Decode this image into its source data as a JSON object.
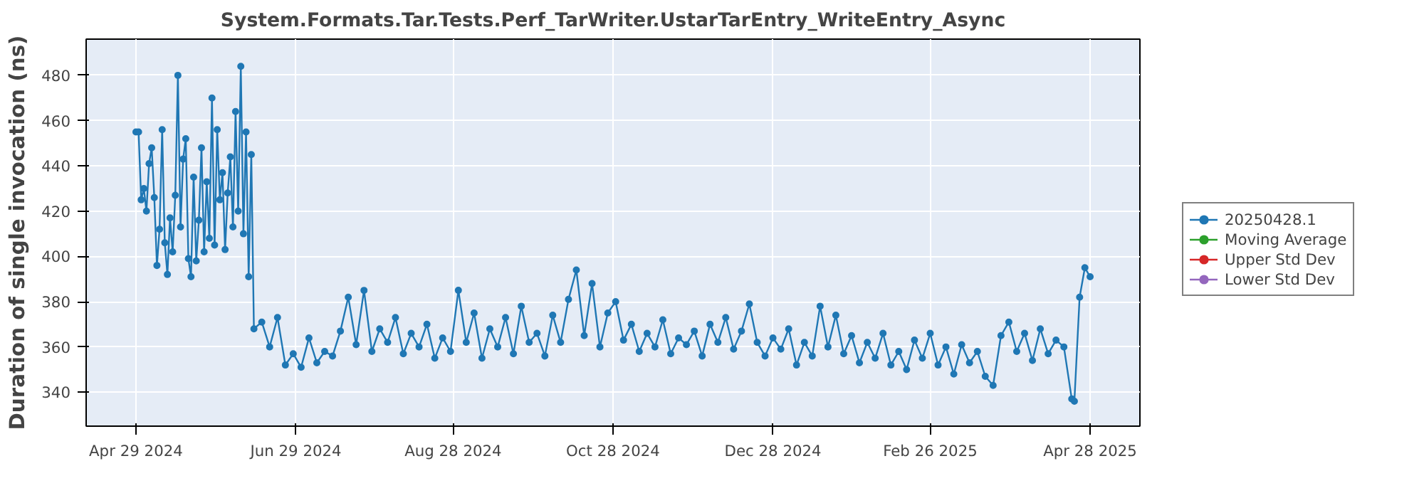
{
  "chart_data": {
    "type": "line",
    "title": "System.Formats.Tar.Tests.Perf_TarWriter.UstarTarEntry_WriteEntry_Async",
    "ylabel": "Duration of single invocation (ns)",
    "x": [
      "2024-04-29",
      "2024-04-30",
      "2024-05-01",
      "2024-05-02",
      "2024-05-03",
      "2024-05-04",
      "2024-05-05",
      "2024-05-06",
      "2024-05-07",
      "2024-05-08",
      "2024-05-09",
      "2024-05-10",
      "2024-05-11",
      "2024-05-12",
      "2024-05-13",
      "2024-05-14",
      "2024-05-15",
      "2024-05-16",
      "2024-05-17",
      "2024-05-18",
      "2024-05-19",
      "2024-05-20",
      "2024-05-21",
      "2024-05-22",
      "2024-05-23",
      "2024-05-24",
      "2024-05-25",
      "2024-05-26",
      "2024-05-27",
      "2024-05-28",
      "2024-05-29",
      "2024-05-30",
      "2024-05-31",
      "2024-06-01",
      "2024-06-02",
      "2024-06-03",
      "2024-06-04",
      "2024-06-05",
      "2024-06-06",
      "2024-06-07",
      "2024-06-08",
      "2024-06-09",
      "2024-06-10",
      "2024-06-11",
      "2024-06-12",
      "2024-06-13",
      "2024-06-16",
      "2024-06-19",
      "2024-06-22",
      "2024-06-25",
      "2024-06-28",
      "2024-07-01",
      "2024-07-04",
      "2024-07-07",
      "2024-07-10",
      "2024-07-13",
      "2024-07-16",
      "2024-07-19",
      "2024-07-22",
      "2024-07-25",
      "2024-07-28",
      "2024-07-31",
      "2024-08-03",
      "2024-08-06",
      "2024-08-09",
      "2024-08-12",
      "2024-08-15",
      "2024-08-18",
      "2024-08-21",
      "2024-08-24",
      "2024-08-27",
      "2024-08-30",
      "2024-09-02",
      "2024-09-05",
      "2024-09-08",
      "2024-09-11",
      "2024-09-14",
      "2024-09-17",
      "2024-09-20",
      "2024-09-23",
      "2024-09-26",
      "2024-09-29",
      "2024-10-02",
      "2024-10-05",
      "2024-10-08",
      "2024-10-11",
      "2024-10-14",
      "2024-10-17",
      "2024-10-20",
      "2024-10-23",
      "2024-10-26",
      "2024-10-29",
      "2024-11-01",
      "2024-11-04",
      "2024-11-07",
      "2024-11-10",
      "2024-11-13",
      "2024-11-16",
      "2024-11-19",
      "2024-11-22",
      "2024-11-25",
      "2024-11-28",
      "2024-12-01",
      "2024-12-04",
      "2024-12-07",
      "2024-12-10",
      "2024-12-13",
      "2024-12-16",
      "2024-12-19",
      "2024-12-22",
      "2024-12-25",
      "2024-12-28",
      "2024-12-31",
      "2025-01-03",
      "2025-01-06",
      "2025-01-09",
      "2025-01-12",
      "2025-01-15",
      "2025-01-18",
      "2025-01-21",
      "2025-01-24",
      "2025-01-27",
      "2025-01-30",
      "2025-02-02",
      "2025-02-05",
      "2025-02-08",
      "2025-02-11",
      "2025-02-14",
      "2025-02-17",
      "2025-02-20",
      "2025-02-23",
      "2025-02-26",
      "2025-03-01",
      "2025-03-04",
      "2025-03-07",
      "2025-03-10",
      "2025-03-13",
      "2025-03-16",
      "2025-03-19",
      "2025-03-22",
      "2025-03-25",
      "2025-03-28",
      "2025-03-31",
      "2025-04-03",
      "2025-04-06",
      "2025-04-09",
      "2025-04-12",
      "2025-04-15",
      "2025-04-18",
      "2025-04-21",
      "2025-04-22",
      "2025-04-24",
      "2025-04-26",
      "2025-04-28"
    ],
    "series": [
      {
        "name": "20250428.1",
        "color": "#1f77b4",
        "values": [
          455,
          455,
          425,
          430,
          420,
          441,
          448,
          426,
          396,
          412,
          456,
          406,
          392,
          417,
          402,
          427,
          480,
          413,
          443,
          452,
          399,
          391,
          435,
          398,
          416,
          448,
          402,
          433,
          408,
          470,
          405,
          456,
          425,
          437,
          403,
          428,
          444,
          413,
          464,
          420,
          484,
          410,
          455,
          391,
          445,
          368,
          371,
          360,
          373,
          352,
          357,
          351,
          364,
          353,
          358,
          356,
          367,
          382,
          361,
          385,
          358,
          368,
          362,
          373,
          357,
          366,
          360,
          370,
          355,
          364,
          358,
          385,
          362,
          375,
          355,
          368,
          360,
          373,
          357,
          378,
          362,
          366,
          356,
          374,
          362,
          381,
          394,
          365,
          388,
          360,
          375,
          380,
          363,
          370,
          358,
          366,
          360,
          372,
          357,
          364,
          361,
          367,
          356,
          370,
          362,
          373,
          359,
          367,
          379,
          362,
          356,
          364,
          359,
          368,
          352,
          362,
          356,
          378,
          360,
          374,
          357,
          365,
          353,
          362,
          355,
          366,
          352,
          358,
          350,
          363,
          355,
          366,
          352,
          360,
          348,
          361,
          353,
          358,
          347,
          343,
          365,
          371,
          358,
          366,
          354,
          368,
          357,
          363,
          360,
          337,
          336,
          382,
          395,
          391
        ]
      },
      {
        "name": "Moving Average",
        "color": "#2ca02c",
        "values": [
          null,
          null,
          null,
          null,
          null,
          null,
          null,
          null,
          null,
          null,
          null,
          null,
          null,
          null,
          null,
          null,
          null,
          null,
          null,
          null,
          null,
          null,
          null,
          null,
          null,
          null,
          null,
          null,
          null,
          null,
          null,
          null,
          null,
          null,
          null,
          null,
          null,
          null,
          null,
          null,
          null,
          null,
          null,
          null,
          null,
          null,
          null,
          null,
          null,
          null,
          null,
          null,
          null,
          null,
          null,
          null,
          null,
          null,
          null,
          null,
          null,
          null,
          null,
          null,
          null,
          null,
          null,
          null,
          null,
          null,
          null,
          null,
          null,
          null,
          null,
          null,
          null,
          null,
          null,
          null,
          null,
          null,
          null,
          null,
          null,
          null,
          null,
          null,
          null,
          null,
          null,
          null,
          null,
          null,
          null,
          null,
          null,
          null,
          null,
          null,
          null,
          null,
          null,
          null,
          null,
          null,
          null,
          null,
          null,
          null,
          null,
          null,
          null,
          null,
          null,
          null,
          null,
          null,
          null,
          null,
          null,
          null,
          null,
          null,
          null,
          null,
          null,
          null,
          null,
          null,
          null,
          null,
          null,
          null,
          null,
          null,
          null,
          null,
          null,
          null,
          null,
          null,
          null,
          null,
          null,
          null,
          null,
          null,
          null,
          null,
          null,
          null,
          null,
          null
        ]
      },
      {
        "name": "Upper Std Dev",
        "color": "#d62728",
        "values": [
          null,
          null,
          null,
          null,
          null,
          null,
          null,
          null,
          null,
          null,
          null,
          null,
          null,
          null,
          null,
          null,
          null,
          null,
          null,
          null,
          null,
          null,
          null,
          null,
          null,
          null,
          null,
          null,
          null,
          null,
          null,
          null,
          null,
          null,
          null,
          null,
          null,
          null,
          null,
          null,
          null,
          null,
          null,
          null,
          null,
          null,
          null,
          null,
          null,
          null,
          null,
          null,
          null,
          null,
          null,
          null,
          null,
          null,
          null,
          null,
          null,
          null,
          null,
          null,
          null,
          null,
          null,
          null,
          null,
          null,
          null,
          null,
          null,
          null,
          null,
          null,
          null,
          null,
          null,
          null,
          null,
          null,
          null,
          null,
          null,
          null,
          null,
          null,
          null,
          null,
          null,
          null,
          null,
          null,
          null,
          null,
          null,
          null,
          null,
          null,
          null,
          null,
          null,
          null,
          null,
          null,
          null,
          null,
          null,
          null,
          null,
          null,
          null,
          null,
          null,
          null,
          null,
          null,
          null,
          null,
          null,
          null,
          null,
          null,
          null,
          null,
          null,
          null,
          null,
          null,
          null,
          null,
          null,
          null,
          null,
          null,
          null,
          null,
          null,
          null,
          null,
          null,
          null,
          null,
          null,
          null,
          null,
          null,
          null,
          null,
          null,
          null,
          null,
          null
        ]
      },
      {
        "name": "Lower Std Dev",
        "color": "#9467bd",
        "values": [
          null,
          null,
          null,
          null,
          null,
          null,
          null,
          null,
          null,
          null,
          null,
          null,
          null,
          null,
          null,
          null,
          null,
          null,
          null,
          null,
          null,
          null,
          null,
          null,
          null,
          null,
          null,
          null,
          null,
          null,
          null,
          null,
          null,
          null,
          null,
          null,
          null,
          null,
          null,
          null,
          null,
          null,
          null,
          null,
          null,
          null,
          null,
          null,
          null,
          null,
          null,
          null,
          null,
          null,
          null,
          null,
          null,
          null,
          null,
          null,
          null,
          null,
          null,
          null,
          null,
          null,
          null,
          null,
          null,
          null,
          null,
          null,
          null,
          null,
          null,
          null,
          null,
          null,
          null,
          null,
          null,
          null,
          null,
          null,
          null,
          null,
          null,
          null,
          null,
          null,
          null,
          null,
          null,
          null,
          null,
          null,
          null,
          null,
          null,
          null,
          null,
          null,
          null,
          null,
          null,
          null,
          null,
          null,
          null,
          null,
          null,
          null,
          null,
          null,
          null,
          null,
          null,
          null,
          null,
          null,
          null,
          null,
          null,
          null,
          null,
          null,
          null,
          null,
          null,
          null,
          null,
          null,
          null,
          null,
          null,
          null,
          null,
          null,
          null,
          null,
          null,
          null,
          null,
          null,
          null,
          null,
          null,
          null,
          null,
          null,
          null,
          null,
          null,
          null
        ]
      }
    ],
    "xlim": [
      "2024-04-10",
      "2025-05-17"
    ],
    "xticks": [
      {
        "value": "2024-04-29",
        "label": "Apr 29 2024"
      },
      {
        "value": "2024-06-29",
        "label": "Jun 29 2024"
      },
      {
        "value": "2024-08-28",
        "label": "Aug 28 2024"
      },
      {
        "value": "2024-10-28",
        "label": "Oct 28 2024"
      },
      {
        "value": "2024-12-28",
        "label": "Dec 28 2024"
      },
      {
        "value": "2025-02-26",
        "label": "Feb 26 2025"
      },
      {
        "value": "2025-04-28",
        "label": "Apr 28 2025"
      }
    ],
    "ylim": [
      325,
      496
    ],
    "yticks": [
      340,
      360,
      380,
      400,
      420,
      440,
      460,
      480
    ],
    "grid": true,
    "legend": "right",
    "marker": "circle",
    "line_style": "solid"
  }
}
